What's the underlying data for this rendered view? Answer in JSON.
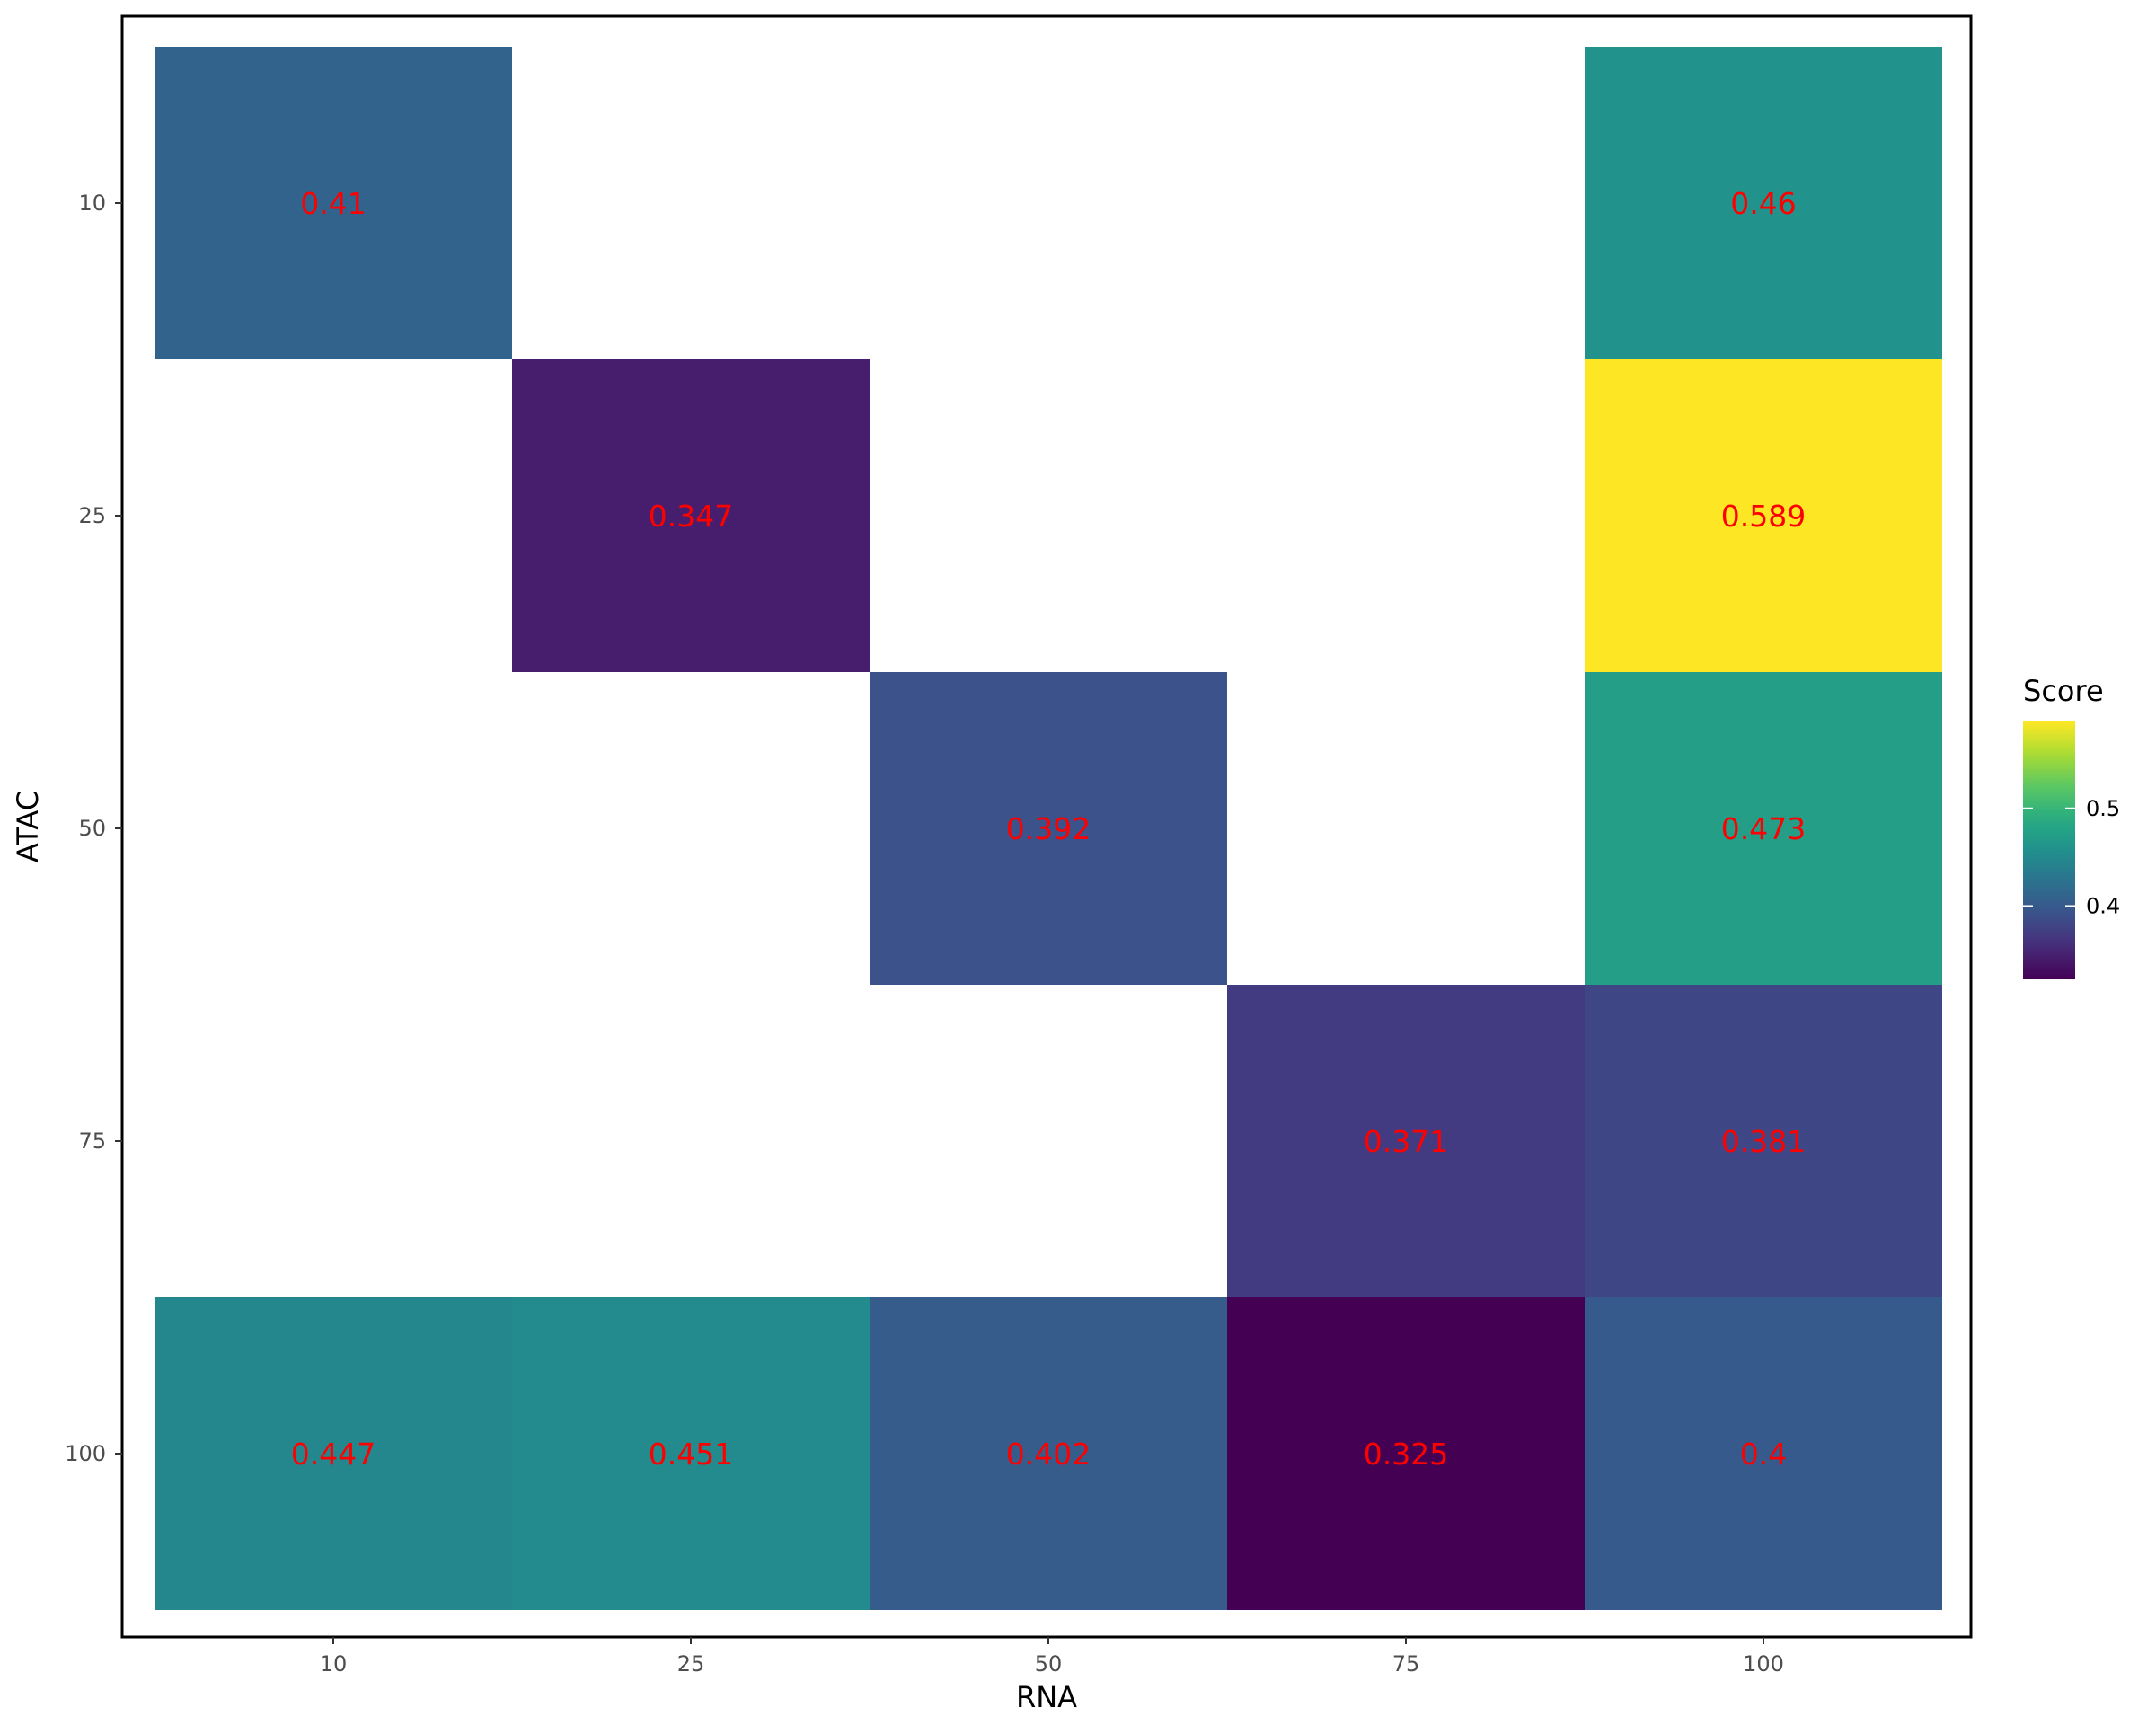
{
  "chart_data": {
    "type": "heatmap",
    "xlabel": "RNA",
    "ylabel": "ATAC",
    "x_categories": [
      "10",
      "25",
      "50",
      "75",
      "100"
    ],
    "y_categories": [
      "10",
      "25",
      "50",
      "75",
      "100"
    ],
    "cells": [
      {
        "rna": "10",
        "atac": "10",
        "value": 0.41,
        "label": "0.41"
      },
      {
        "rna": "100",
        "atac": "10",
        "value": 0.46,
        "label": "0.46"
      },
      {
        "rna": "25",
        "atac": "25",
        "value": 0.347,
        "label": "0.347"
      },
      {
        "rna": "100",
        "atac": "25",
        "value": 0.589,
        "label": "0.589"
      },
      {
        "rna": "50",
        "atac": "50",
        "value": 0.392,
        "label": "0.392"
      },
      {
        "rna": "100",
        "atac": "50",
        "value": 0.473,
        "label": "0.473"
      },
      {
        "rna": "75",
        "atac": "75",
        "value": 0.371,
        "label": "0.371"
      },
      {
        "rna": "100",
        "atac": "75",
        "value": 0.381,
        "label": "0.381"
      },
      {
        "rna": "10",
        "atac": "100",
        "value": 0.447,
        "label": "0.447"
      },
      {
        "rna": "25",
        "atac": "100",
        "value": 0.451,
        "label": "0.451"
      },
      {
        "rna": "50",
        "atac": "100",
        "value": 0.402,
        "label": "0.402"
      },
      {
        "rna": "75",
        "atac": "100",
        "value": 0.325,
        "label": "0.325"
      },
      {
        "rna": "100",
        "atac": "100",
        "value": 0.4,
        "label": "0.4"
      }
    ],
    "legend": {
      "title": "Score",
      "position": "right",
      "range": [
        0.325,
        0.589
      ],
      "ticks": [
        {
          "value": 0.4,
          "label": "0.4"
        },
        {
          "value": 0.5,
          "label": "0.5"
        }
      ],
      "colormap": "viridis"
    },
    "label_color": "#ff0000",
    "grid": false
  }
}
